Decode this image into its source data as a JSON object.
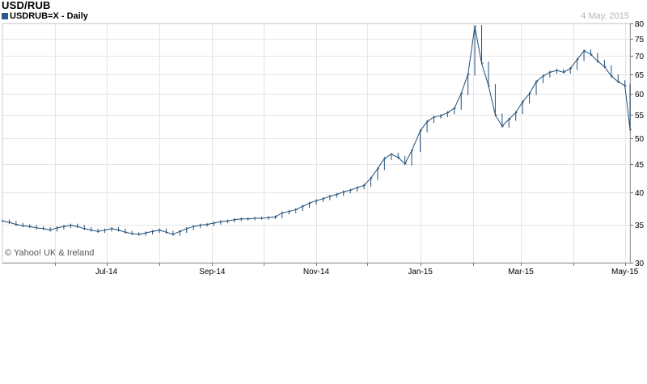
{
  "header": {
    "title": "USD/RUB",
    "subtitle": "USDRUB=X - Daily",
    "date": "4 May, 2015",
    "copyright": "© Yahoo! UK & Ireland"
  },
  "colors": {
    "series": "#1f4e79",
    "legend": "#2b5a8a",
    "grid": "#e4e4e4",
    "date_text": "#b5b5b5"
  },
  "chart_data": {
    "type": "line",
    "style": "ohlc-bars",
    "title": "USD/RUB",
    "subtitle": "USDRUB=X - Daily",
    "y_scale": "log",
    "y_axis_side": "right",
    "ylim": [
      30,
      80
    ],
    "yticks": [
      30,
      35,
      40,
      45,
      50,
      55,
      60,
      65,
      70,
      75,
      80
    ],
    "x_range": [
      "2014-05-01",
      "2015-05-04"
    ],
    "xtick_labels": [
      {
        "date": "2014-07-01",
        "label": "Jul-14"
      },
      {
        "date": "2014-09-01",
        "label": "Sep-14"
      },
      {
        "date": "2014-11-01",
        "label": "Nov-14"
      },
      {
        "date": "2015-01-01",
        "label": "Jan-15"
      },
      {
        "date": "2015-03-01",
        "label": "Mar-15"
      },
      {
        "date": "2015-05-01",
        "label": "May-15"
      }
    ],
    "grid": true,
    "series": [
      {
        "points": [
          [
            "2014-05-01",
            35.6
          ],
          [
            "2014-05-05",
            35.4
          ],
          [
            "2014-05-09",
            35.1
          ],
          [
            "2014-05-13",
            34.9
          ],
          [
            "2014-05-17",
            34.8
          ],
          [
            "2014-05-21",
            34.6
          ],
          [
            "2014-05-25",
            34.5
          ],
          [
            "2014-05-29",
            34.3
          ],
          [
            "2014-06-02",
            34.6
          ],
          [
            "2014-06-06",
            34.8
          ],
          [
            "2014-06-10",
            35.0
          ],
          [
            "2014-06-14",
            34.8
          ],
          [
            "2014-06-18",
            34.5
          ],
          [
            "2014-06-22",
            34.3
          ],
          [
            "2014-06-26",
            34.1
          ],
          [
            "2014-06-30",
            34.3
          ],
          [
            "2014-07-04",
            34.5
          ],
          [
            "2014-07-08",
            34.3
          ],
          [
            "2014-07-12",
            34.0
          ],
          [
            "2014-07-16",
            33.8
          ],
          [
            "2014-07-20",
            33.7
          ],
          [
            "2014-07-24",
            33.9
          ],
          [
            "2014-07-28",
            34.1
          ],
          [
            "2014-08-01",
            34.3
          ],
          [
            "2014-08-05",
            34.0
          ],
          [
            "2014-08-09",
            33.7
          ],
          [
            "2014-08-13",
            34.1
          ],
          [
            "2014-08-17",
            34.5
          ],
          [
            "2014-08-21",
            34.8
          ],
          [
            "2014-08-25",
            35.0
          ],
          [
            "2014-08-29",
            35.1
          ],
          [
            "2014-09-02",
            35.3
          ],
          [
            "2014-09-06",
            35.5
          ],
          [
            "2014-09-10",
            35.6
          ],
          [
            "2014-09-14",
            35.8
          ],
          [
            "2014-09-18",
            35.9
          ],
          [
            "2014-09-22",
            35.9
          ],
          [
            "2014-09-26",
            36.0
          ],
          [
            "2014-09-30",
            36.0
          ],
          [
            "2014-10-04",
            36.1
          ],
          [
            "2014-10-08",
            36.2
          ],
          [
            "2014-10-12",
            36.8
          ],
          [
            "2014-10-16",
            37.0
          ],
          [
            "2014-10-20",
            37.3
          ],
          [
            "2014-10-24",
            37.8
          ],
          [
            "2014-10-28",
            38.3
          ],
          [
            "2014-11-01",
            38.7
          ],
          [
            "2014-11-05",
            39.0
          ],
          [
            "2014-11-09",
            39.4
          ],
          [
            "2014-11-13",
            39.7
          ],
          [
            "2014-11-17",
            40.1
          ],
          [
            "2014-11-21",
            40.4
          ],
          [
            "2014-11-25",
            40.8
          ],
          [
            "2014-11-29",
            41.2
          ],
          [
            "2014-12-03",
            42.4
          ],
          [
            "2014-12-07",
            44.1
          ],
          [
            "2014-12-11",
            46.0
          ],
          [
            "2014-12-15",
            46.8
          ],
          [
            "2014-12-19",
            46.2
          ],
          [
            "2014-12-23",
            45.0
          ],
          [
            "2014-12-27",
            47.5
          ],
          [
            "2015-01-01",
            51.5
          ],
          [
            "2015-01-05",
            53.5
          ],
          [
            "2015-01-09",
            54.5
          ],
          [
            "2015-01-13",
            54.8
          ],
          [
            "2015-01-17",
            55.5
          ],
          [
            "2015-01-21",
            56.5
          ],
          [
            "2015-01-25",
            60.0
          ],
          [
            "2015-01-29",
            65.0
          ],
          [
            "2015-02-02",
            79.0
          ],
          [
            "2015-02-06",
            68.0
          ],
          [
            "2015-02-10",
            62.0
          ],
          [
            "2015-02-14",
            55.0
          ],
          [
            "2015-02-18",
            52.5
          ],
          [
            "2015-02-22",
            54.0
          ],
          [
            "2015-02-26",
            55.5
          ],
          [
            "2015-03-02",
            58.0
          ],
          [
            "2015-03-06",
            60.0
          ],
          [
            "2015-03-10",
            63.0
          ],
          [
            "2015-03-14",
            64.5
          ],
          [
            "2015-03-18",
            65.5
          ],
          [
            "2015-03-22",
            66.0
          ],
          [
            "2015-03-26",
            65.5
          ],
          [
            "2015-03-30",
            66.5
          ],
          [
            "2015-04-03",
            69.0
          ],
          [
            "2015-04-07",
            71.5
          ],
          [
            "2015-04-11",
            70.5
          ],
          [
            "2015-04-15",
            68.5
          ],
          [
            "2015-04-19",
            67.0
          ],
          [
            "2015-04-23",
            64.5
          ],
          [
            "2015-04-27",
            63.0
          ],
          [
            "2015-05-01",
            62.0
          ],
          [
            "2015-05-04",
            51.8
          ]
        ]
      }
    ]
  }
}
